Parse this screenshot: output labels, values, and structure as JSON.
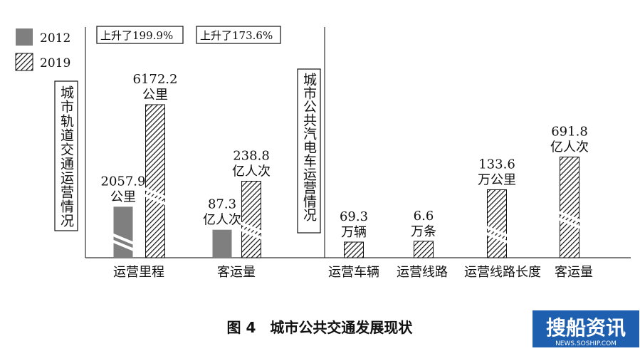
{
  "legend": [
    {
      "label": "2012",
      "pattern": "solid"
    },
    {
      "label": "2019",
      "pattern": "hatched"
    }
  ],
  "panel_labels": [
    "城市轨道交通运营情况",
    "城市公共汽电车运营情况"
  ],
  "increase_notes": [
    "上升了199.9%",
    "上升了173.6%"
  ],
  "caption": "图 4　城市公共交通发展现状",
  "watermark": {
    "logo": "搜船资讯",
    "url": "NEWS.SOSHIP.COM",
    "color": "#1f5fb0"
  },
  "colors": {
    "solid": "#7f7f7f",
    "hatch": "#111111",
    "axis": "#333333"
  },
  "chart_data": [
    {
      "type": "bar",
      "categories": [
        "运营里程",
        "客运量"
      ],
      "series": [
        {
          "name": "2012",
          "values": [
            2057.9,
            87.3
          ],
          "labels": [
            [
              "2057.9",
              "公里"
            ],
            [
              "87.3",
              "亿人次"
            ]
          ]
        },
        {
          "name": "2019",
          "values": [
            6172.2,
            238.8
          ],
          "labels": [
            [
              "6172.2",
              "公里"
            ],
            [
              "238.8",
              "亿人次"
            ]
          ]
        }
      ],
      "broken_axis": true
    },
    {
      "type": "bar",
      "categories": [
        "运营车辆",
        "运营线路",
        "运营线路长度",
        "客运量"
      ],
      "series": [
        {
          "name": "2019",
          "values": [
            69.3,
            6.6,
            133.6,
            691.8
          ],
          "labels": [
            [
              "69.3",
              "万辆"
            ],
            [
              "6.6",
              "万条"
            ],
            [
              "133.6",
              "万公里"
            ],
            [
              "691.8",
              "亿人次"
            ]
          ]
        }
      ],
      "broken_axis": true
    }
  ]
}
